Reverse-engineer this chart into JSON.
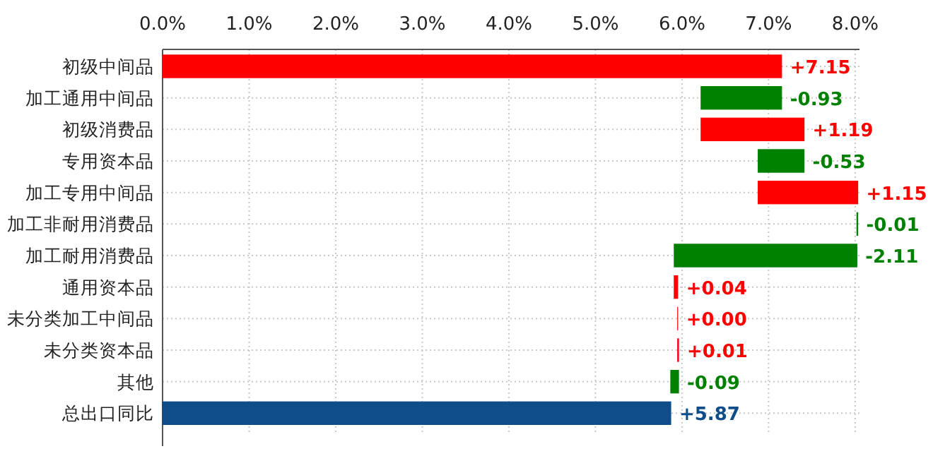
{
  "chart_data": {
    "type": "bar",
    "orientation": "horizontal",
    "categories": [
      "初级中间品",
      "加工通用中间品",
      "初级消费品",
      "专用资本品",
      "加工专用中间品",
      "加工非耐用消费品",
      "加工耐用消费品",
      "通用资本品",
      "未分类加工中间品",
      "未分类资本品",
      "其他",
      "总出口同比"
    ],
    "base": [
      0,
      7.15,
      6.22,
      7.41,
      6.88,
      8.03,
      8.02,
      5.91,
      5.95,
      5.95,
      5.96,
      0
    ],
    "values": [
      7.15,
      -0.93,
      1.19,
      -0.53,
      1.15,
      -0.01,
      -2.11,
      0.04,
      0.0,
      0.01,
      -0.09,
      5.87
    ],
    "colors": [
      "#ff0000",
      "#008000",
      "#ff0000",
      "#008000",
      "#ff0000",
      "#008000",
      "#008000",
      "#ff0000",
      "#ff0000",
      "#ff0000",
      "#008000",
      "#0f4c8a"
    ],
    "value_labels": [
      "+7.15",
      "-0.93",
      "+1.19",
      "-0.53",
      "+1.15",
      "-0.01",
      "-2.11",
      "+0.04",
      "+0.00",
      "+0.01",
      "-0.09",
      "+5.87"
    ],
    "xlim": [
      0,
      8.05
    ],
    "xticks": [
      {
        "value": 0,
        "label": "0.0%"
      },
      {
        "value": 1,
        "label": "1.0%"
      },
      {
        "value": 2,
        "label": "2.0%"
      },
      {
        "value": 3,
        "label": "3.0%"
      },
      {
        "value": 4,
        "label": "4.0%"
      },
      {
        "value": 5,
        "label": "5.0%"
      },
      {
        "value": 6,
        "label": "6.0%"
      },
      {
        "value": 7,
        "label": "7.0%"
      },
      {
        "value": 8,
        "label": "8.0%"
      }
    ],
    "grid": true
  }
}
